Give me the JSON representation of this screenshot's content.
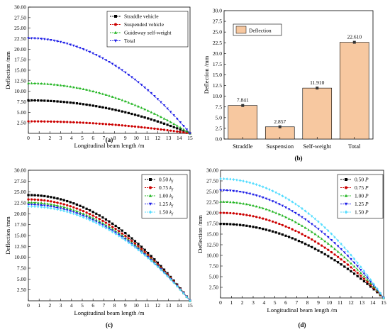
{
  "chart_data": [
    {
      "id": "a",
      "type": "line",
      "panel_label": "(a)",
      "xlabel": "Longitudinal beam length /m",
      "ylabel": "Deflection /mm",
      "xlim": [
        0,
        15
      ],
      "ylim": [
        0,
        30
      ],
      "xticks": [
        "0",
        "1",
        "2",
        "3",
        "4",
        "5",
        "6",
        "7",
        "8",
        "9",
        "10",
        "11",
        "12",
        "13",
        "14",
        "15"
      ],
      "yticks": [
        "2.50",
        "5.00",
        "7.50",
        "10.00",
        "12.50",
        "15.00",
        "17.50",
        "20.00",
        "22.50",
        "25.00",
        "27.50",
        "30.00"
      ],
      "legend_position": "top-right",
      "series": [
        {
          "name": "Straddle vehicle",
          "peak": 7.841,
          "color": "#000000",
          "marker": "square"
        },
        {
          "name": "Suspended vehicle",
          "peak": 2.857,
          "color": "#cc0000",
          "marker": "circle"
        },
        {
          "name": "Guideway self-weight",
          "peak": 11.91,
          "color": "#22b522",
          "marker": "triangle-up"
        },
        {
          "name": "Total",
          "peak": 22.61,
          "color": "#1a1ae6",
          "marker": "triangle-down"
        }
      ]
    },
    {
      "id": "b",
      "type": "bar",
      "panel_label": "(b)",
      "ylabel": "Deflection /mm",
      "ylim": [
        0,
        30
      ],
      "yticks": [
        "0.0",
        "2.5",
        "5.0",
        "7.5",
        "10.0",
        "12.5",
        "15.0",
        "17.5",
        "20.0",
        "22.5",
        "25.0",
        "27.5",
        "30.0"
      ],
      "legend_position": "top-left",
      "legend": "Deflection",
      "bar_color": "#f7c8a0",
      "categories": [
        "Straddle",
        "Suspension",
        "Self-weight",
        "Total"
      ],
      "values": [
        7.841,
        2.857,
        11.91,
        22.61
      ],
      "data_labels": [
        "7.841",
        "2.857",
        "11.910",
        "22.610"
      ]
    },
    {
      "id": "c",
      "type": "line",
      "panel_label": "(c)",
      "xlabel": "Longitudinal beam length /m",
      "ylabel": "Deflection /mm",
      "xlim": [
        0,
        15
      ],
      "ylim": [
        0,
        30
      ],
      "xticks": [
        "0",
        "1",
        "2",
        "3",
        "4",
        "5",
        "6",
        "7",
        "8",
        "9",
        "10",
        "11",
        "12",
        "13",
        "14",
        "15"
      ],
      "yticks": [
        "2.50",
        "5.00",
        "7.50",
        "10.00",
        "12.50",
        "15.00",
        "17.50",
        "20.00",
        "22.50",
        "25.00",
        "27.50",
        "30.00"
      ],
      "legend_position": "top-right",
      "series": [
        {
          "name": "0.50",
          "sym": "k",
          "sub": "f",
          "peak": 24.3,
          "color": "#000000",
          "marker": "square"
        },
        {
          "name": "0.75",
          "sym": "k",
          "sub": "f",
          "peak": 23.3,
          "color": "#cc0000",
          "marker": "circle"
        },
        {
          "name": "1.00",
          "sym": "k",
          "sub": "f",
          "peak": 22.61,
          "color": "#22b522",
          "marker": "triangle-up"
        },
        {
          "name": "1.25",
          "sym": "k",
          "sub": "f",
          "peak": 22.1,
          "color": "#1a1ae6",
          "marker": "triangle-down"
        },
        {
          "name": "1.50",
          "sym": "k",
          "sub": "f",
          "peak": 21.7,
          "color": "#55ddff",
          "marker": "diamond"
        }
      ]
    },
    {
      "id": "d",
      "type": "line",
      "panel_label": "(d)",
      "xlabel": "Longitudinal beam length /m",
      "ylabel": "Deflection /mm",
      "xlim": [
        0,
        15
      ],
      "ylim": [
        0,
        30
      ],
      "xticks": [
        "0",
        "1",
        "2",
        "3",
        "4",
        "5",
        "6",
        "7",
        "8",
        "9",
        "10",
        "11",
        "12",
        "13",
        "14",
        "15"
      ],
      "yticks": [
        "2.50",
        "5.00",
        "7.50",
        "10.00",
        "12.50",
        "15.00",
        "17.50",
        "20.00",
        "22.50",
        "25.00",
        "27.50",
        "30.00"
      ],
      "legend_position": "top-right",
      "series": [
        {
          "name": "0.50",
          "sym": "P",
          "peak": 17.4,
          "color": "#000000",
          "marker": "square"
        },
        {
          "name": "0.75",
          "sym": "P",
          "peak": 20.0,
          "color": "#cc0000",
          "marker": "circle"
        },
        {
          "name": "1.00",
          "sym": "P",
          "peak": 22.61,
          "color": "#22b522",
          "marker": "triangle-up"
        },
        {
          "name": "1.25",
          "sym": "P",
          "peak": 25.3,
          "color": "#1a1ae6",
          "marker": "triangle-down"
        },
        {
          "name": "1.50",
          "sym": "P",
          "peak": 28.0,
          "color": "#55ddff",
          "marker": "diamond"
        }
      ]
    }
  ]
}
